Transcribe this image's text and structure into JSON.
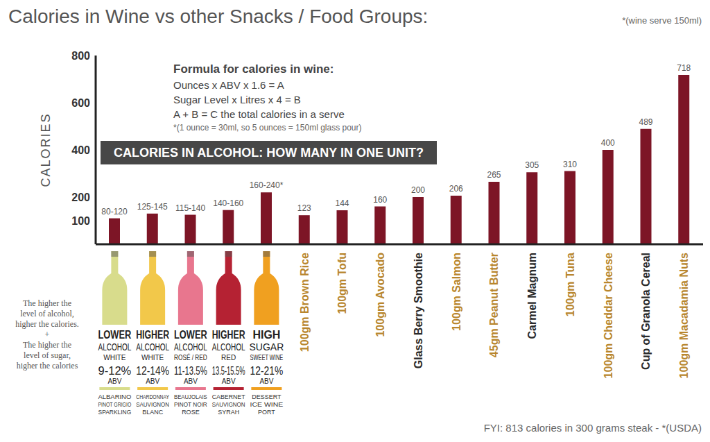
{
  "chart_data": {
    "type": "bar",
    "title": "Calories in Wine vs other Snacks / Food Groups:",
    "subtitle": "*(wine serve 150ml)",
    "y_label": "CALORIES",
    "categories": [
      "LOWER ALCOHOL WHITE",
      "HIGHER ALCOHOL WHITE",
      "LOWER ALCOHOL ROSÉ / RED",
      "HIGHER ALCOHOL RED",
      "HIGH SUGAR SWEET WINE",
      "100gm Brown Rice",
      "100gm Tofu",
      "100gm Avocado",
      "Glass Berry Smoothie",
      "100gm Salmon",
      "45gm Peanut Butter",
      "Carmel Magnum",
      "100gm Tuna",
      "100gm Cheddar Cheese",
      "Cup of Granola Cereal",
      "100gm Macadamia Nuts"
    ],
    "values": [
      110,
      130,
      125,
      145,
      220,
      123,
      144,
      160,
      200,
      206,
      265,
      305,
      310,
      400,
      489,
      718
    ],
    "value_labels": [
      "80-120",
      "125-145",
      "115-140",
      "140-160",
      "160-240*",
      "123",
      "144",
      "160",
      "200",
      "206",
      "265",
      "305",
      "310",
      "400",
      "489",
      "718"
    ],
    "abv": [
      "9-12% ABV",
      "12-14% ABV",
      "11-13.5% ABV",
      "13.5-15.5% ABV",
      "12-21% ABV",
      null,
      null,
      null,
      null,
      null,
      null,
      null,
      null,
      null,
      null,
      null
    ],
    "grapes": [
      [
        "ALBARINO",
        "PINOT GRIGIO",
        "SPARKLING"
      ],
      [
        "CHARDONNAY",
        "SAUVIGNON",
        "BLANC"
      ],
      [
        "BEAUJOLAIS",
        "PINOT NOIR",
        "ROSE"
      ],
      [
        "CABERNET",
        "SAUVIGNON",
        "SYRAH"
      ],
      [
        "DESSERT",
        "ICE WINE",
        "PORT"
      ],
      null,
      null,
      null,
      null,
      null,
      null,
      null,
      null,
      null,
      null,
      null
    ],
    "color": "#7d1526",
    "ylim": [
      0,
      800
    ],
    "yticks": [
      100,
      200,
      400,
      600,
      800
    ],
    "grid": false,
    "data_labels": true,
    "formula": {
      "heading": "Formula for calories in wine:",
      "lines": [
        "Ounces x ABV x 1.6 = A",
        "Sugar Level x Litres x 4 = B",
        "A + B = C the total calories in a serve"
      ],
      "footnote": "*(1 ounce = 30ml, so 5 ounces = 150ml glass pour)"
    },
    "note": [
      "The higher the",
      "level of alcohol,",
      "higher the calories.",
      "+",
      "The higher the",
      "level of sugar,",
      "higher the calories"
    ],
    "footer": "FYI: 813 calories in 300 grams steak - *(USDA)",
    "banner": "CALORIES IN ALCOHOL: HOW MANY IN ONE UNIT?"
  }
}
